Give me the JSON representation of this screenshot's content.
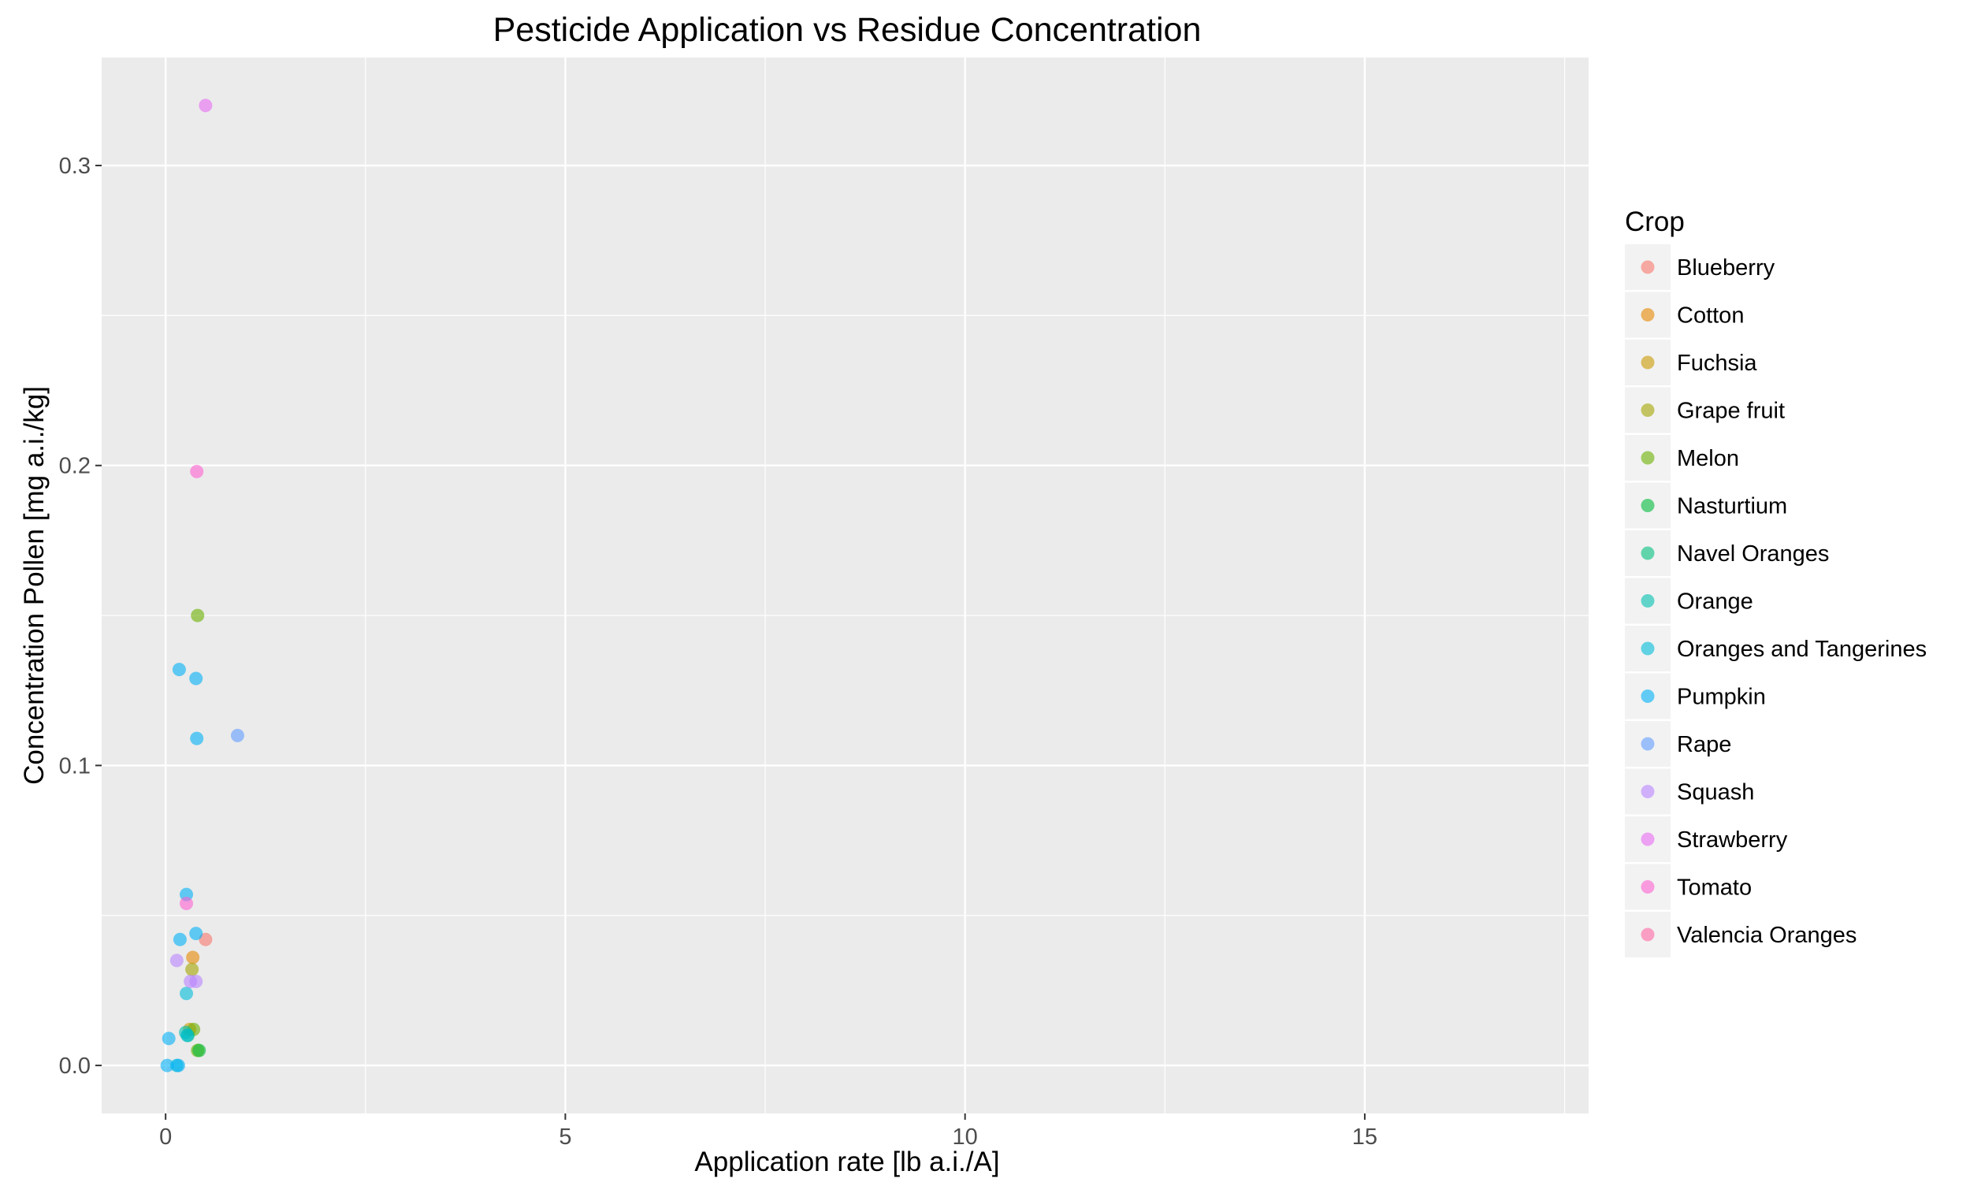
{
  "chart_data": {
    "type": "scatter",
    "title": "Pesticide Application vs Residue Concentration",
    "xlabel": "Application rate [lb a.i./A]",
    "ylabel": "Concentration Pollen [mg a.i./kg]",
    "xlim": [
      -0.8,
      17.8
    ],
    "ylim": [
      -0.016,
      0.336
    ],
    "xticks": [
      0,
      5,
      10,
      15
    ],
    "xtick_labels": [
      "0",
      "5",
      "10",
      "15"
    ],
    "yticks": [
      0.0,
      0.1,
      0.2,
      0.3
    ],
    "ytick_labels": [
      "0.0",
      "0.1",
      "0.2",
      "0.3"
    ],
    "grid": true,
    "legend_title": "Crop",
    "legend_position": "right",
    "point_opacity": 0.6,
    "series": [
      {
        "name": "Blueberry",
        "color": "#F8766D",
        "points": [
          [
            0.5,
            0.042
          ]
        ]
      },
      {
        "name": "Cotton",
        "color": "#E58700",
        "points": [
          [
            0.34,
            0.036
          ]
        ]
      },
      {
        "name": "Fuchsia",
        "color": "#C99800",
        "points": [
          [
            0.3,
            0.012
          ]
        ]
      },
      {
        "name": "Grape fruit",
        "color": "#A3A500",
        "points": [
          [
            0.33,
            0.032
          ]
        ]
      },
      {
        "name": "Melon",
        "color": "#6BB100",
        "points": [
          [
            0.4,
            0.15
          ],
          [
            0.35,
            0.012
          ],
          [
            0.4,
            0.005
          ]
        ]
      },
      {
        "name": "Nasturtium",
        "color": "#00BA38",
        "points": [
          [
            0.42,
            0.005
          ]
        ]
      },
      {
        "name": "Navel Oranges",
        "color": "#00BF7D",
        "points": [
          [
            0.28,
            0.01
          ]
        ]
      },
      {
        "name": "Orange",
        "color": "#00C0AF",
        "points": [
          [
            0.25,
            0.011
          ]
        ]
      },
      {
        "name": "Oranges and Tangerines",
        "color": "#00BCD8",
        "points": [
          [
            0.27,
            0.01
          ],
          [
            0.14,
            0.0
          ],
          [
            0.26,
            0.024
          ]
        ]
      },
      {
        "name": "Pumpkin",
        "color": "#00B0F6",
        "points": [
          [
            0.17,
            0.132
          ],
          [
            0.38,
            0.129
          ],
          [
            0.39,
            0.109
          ],
          [
            0.26,
            0.057
          ],
          [
            0.38,
            0.044
          ],
          [
            0.18,
            0.042
          ],
          [
            0.04,
            0.009
          ],
          [
            0.02,
            0.0
          ],
          [
            0.16,
            0.0
          ]
        ]
      },
      {
        "name": "Rape",
        "color": "#619CFF",
        "points": [
          [
            0.9,
            0.11
          ]
        ]
      },
      {
        "name": "Squash",
        "color": "#B983FF",
        "points": [
          [
            0.38,
            0.028
          ],
          [
            0.31,
            0.028
          ],
          [
            0.14,
            0.035
          ]
        ]
      },
      {
        "name": "Strawberry",
        "color": "#E76BF3",
        "points": [
          [
            0.5,
            0.32
          ]
        ]
      },
      {
        "name": "Tomato",
        "color": "#FD61D1",
        "points": [
          [
            0.39,
            0.198
          ],
          [
            0.26,
            0.054
          ]
        ]
      },
      {
        "name": "Valencia Oranges",
        "color": "#FF67A4",
        "points": []
      }
    ]
  }
}
